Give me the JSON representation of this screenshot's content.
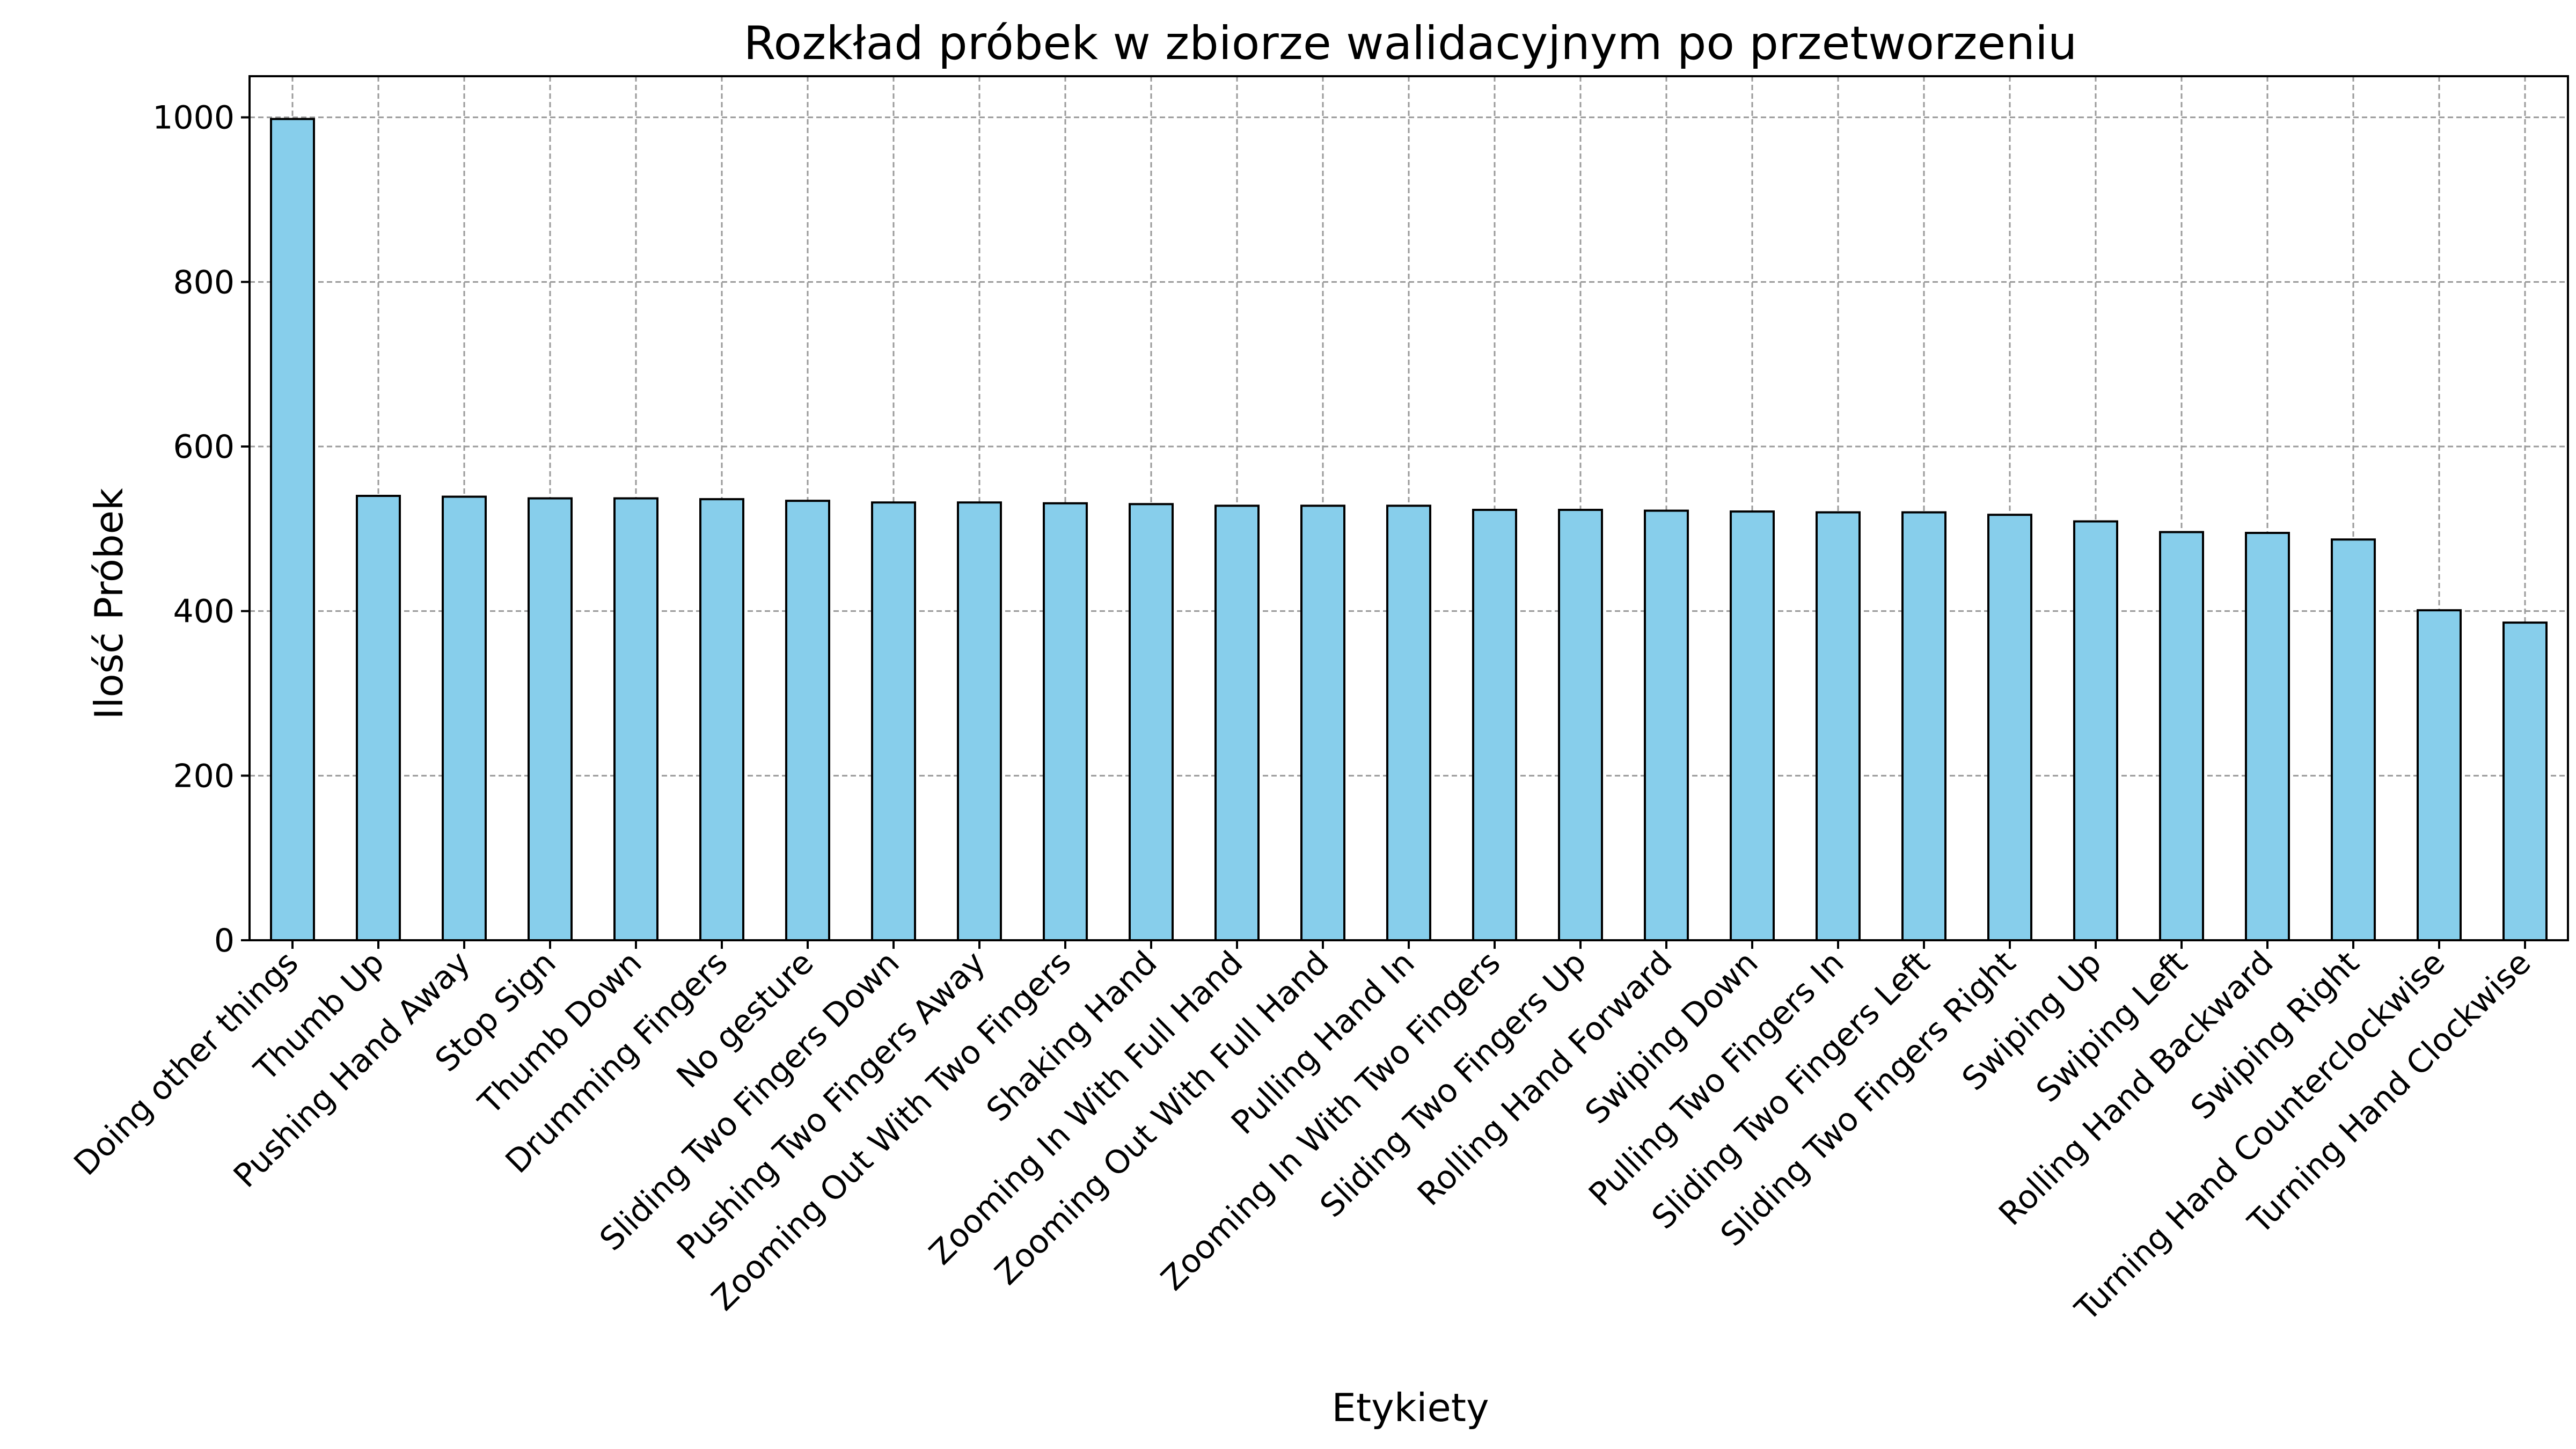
{
  "chart_data": {
    "type": "bar",
    "title": "Rozkład próbek w zbiorze walidacyjnym po przetworzeniu",
    "xlabel": "Etykiety",
    "ylabel": "Ilość Próbek",
    "ylim": [
      0,
      1050
    ],
    "yticks": [
      0,
      200,
      400,
      600,
      800,
      1000
    ],
    "grid": true,
    "bar_color": "#87CEEB",
    "edge_color": "#000000",
    "categories": [
      "Doing other things",
      "Thumb Up",
      "Pushing Hand Away",
      "Stop Sign",
      "Thumb Down",
      "Drumming Fingers",
      "No gesture",
      "Sliding Two Fingers Down",
      "Pushing Two Fingers Away",
      "Zooming Out With Two Fingers",
      "Shaking Hand",
      "Zooming In With Full Hand",
      "Zooming Out With Full Hand",
      "Pulling Hand In",
      "Zooming In With Two Fingers",
      "Sliding Two Fingers Up",
      "Rolling Hand Forward",
      "Swiping Down",
      "Pulling Two Fingers In",
      "Sliding Two Fingers Left",
      "Sliding Two Fingers Right",
      "Swiping Up",
      "Swiping Left",
      "Rolling Hand Backward",
      "Swiping Right",
      "Turning Hand Counterclockwise",
      "Turning Hand Clockwise"
    ],
    "values": [
      998,
      540,
      539,
      537,
      537,
      536,
      534,
      532,
      532,
      531,
      530,
      528,
      528,
      528,
      523,
      523,
      522,
      521,
      520,
      520,
      517,
      509,
      496,
      495,
      487,
      401,
      386
    ]
  }
}
